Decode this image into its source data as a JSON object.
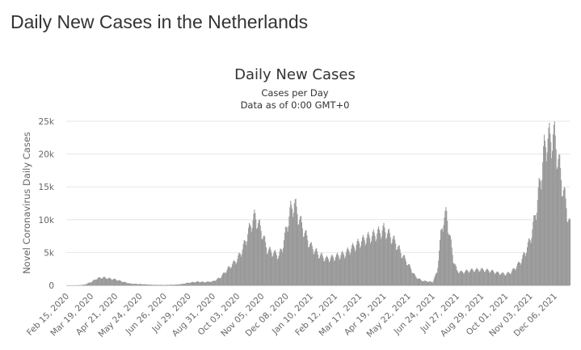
{
  "page": {
    "title": "Daily New Cases in the Netherlands"
  },
  "chart_data": {
    "type": "bar",
    "title": "Daily New Cases",
    "subtitle": "Cases per Day",
    "subtitle2": "Data as of 0:00 GMT+0",
    "xlabel": "",
    "ylabel": "Novel Coronavirus Daily Cases",
    "ylim": [
      0,
      25000
    ],
    "yticks": [
      0,
      5000,
      10000,
      15000,
      20000,
      25000
    ],
    "ytick_labels": [
      "0",
      "5k",
      "10k",
      "15k",
      "20k",
      "25k"
    ],
    "grid": true,
    "legend": "none",
    "bar_color": "#999999",
    "x_start": "2020-02-15",
    "x_end": "2021-12-27",
    "xtick_labels": [
      "Feb 15, 2020",
      "Mar 19, 2020",
      "Apr 21, 2020",
      "May 24, 2020",
      "Jun 26, 2020",
      "Jul 29, 2020",
      "Aug 31, 2020",
      "Oct 03, 2020",
      "Nov 05, 2020",
      "Dec 08, 2020",
      "Jan 10, 2021",
      "Feb 12, 2021",
      "Mar 17, 2021",
      "Apr 19, 2021",
      "May 22, 2021",
      "Jun 24, 2021",
      "Jul 27, 2021",
      "Aug 29, 2021",
      "Oct 01, 2021",
      "Nov 03, 2021",
      "Dec 06, 2021"
    ],
    "x": [
      "2020-02-15",
      "2020-03-01",
      "2020-03-10",
      "2020-03-19",
      "2020-03-28",
      "2020-04-05",
      "2020-04-12",
      "2020-04-21",
      "2020-05-01",
      "2020-05-12",
      "2020-05-24",
      "2020-06-10",
      "2020-06-26",
      "2020-07-10",
      "2020-07-20",
      "2020-07-29",
      "2020-08-10",
      "2020-08-20",
      "2020-08-31",
      "2020-09-10",
      "2020-09-20",
      "2020-10-03",
      "2020-10-10",
      "2020-10-17",
      "2020-10-22",
      "2020-10-27",
      "2020-11-05",
      "2020-11-12",
      "2020-11-20",
      "2020-11-28",
      "2020-12-03",
      "2020-12-08",
      "2020-12-14",
      "2020-12-19",
      "2020-12-26",
      "2021-01-02",
      "2021-01-10",
      "2021-01-20",
      "2021-01-31",
      "2021-02-12",
      "2021-02-25",
      "2021-03-05",
      "2021-03-17",
      "2021-03-27",
      "2021-04-05",
      "2021-04-12",
      "2021-04-19",
      "2021-04-27",
      "2021-05-05",
      "2021-05-12",
      "2021-05-22",
      "2021-06-01",
      "2021-06-10",
      "2021-06-17",
      "2021-06-24",
      "2021-06-30",
      "2021-07-05",
      "2021-07-09",
      "2021-07-13",
      "2021-07-18",
      "2021-07-22",
      "2021-07-27",
      "2021-08-03",
      "2021-08-15",
      "2021-08-29",
      "2021-09-10",
      "2021-09-20",
      "2021-10-01",
      "2021-10-08",
      "2021-10-15",
      "2021-10-22",
      "2021-10-28",
      "2021-11-03",
      "2021-11-08",
      "2021-11-13",
      "2021-11-18",
      "2021-11-22",
      "2021-11-26",
      "2021-11-30",
      "2021-12-04",
      "2021-12-06",
      "2021-12-10",
      "2021-12-14",
      "2021-12-18",
      "2021-12-22",
      "2021-12-25",
      "2021-12-27"
    ],
    "values": [
      0,
      0,
      100,
      500,
      1100,
      1200,
      1050,
      900,
      550,
      250,
      200,
      80,
      60,
      100,
      200,
      400,
      550,
      500,
      600,
      1200,
      2500,
      4000,
      5500,
      7800,
      9500,
      10500,
      8200,
      5500,
      5000,
      4500,
      5800,
      8500,
      11500,
      12500,
      10000,
      8000,
      6000,
      4800,
      4000,
      4300,
      4800,
      5500,
      6500,
      7200,
      7600,
      8000,
      8500,
      7600,
      6500,
      5000,
      3200,
      1300,
      700,
      600,
      500,
      2000,
      7500,
      10200,
      10800,
      7000,
      4000,
      2200,
      2000,
      2300,
      2400,
      2200,
      1900,
      1700,
      2000,
      2800,
      3800,
      5200,
      7000,
      9500,
      13000,
      17000,
      20500,
      22500,
      22000,
      23000,
      22300,
      20000,
      17000,
      14500,
      12000,
      10000,
      9000
    ]
  }
}
